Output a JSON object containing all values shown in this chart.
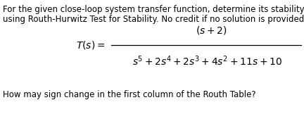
{
  "line1": "For the given close-loop system transfer function, determine its stability",
  "line2": "using Routh-Hurwitz Test for Stability. No credit if no solution is provided.",
  "label_T": "$T(s) =$",
  "numerator": "$(s + 2)$",
  "denominator": "$s^5 + 2s^4 + 2s^3 + 4s^2 + 11s + 10$",
  "question": "How may sign change in the first column of the Routh Table?",
  "bg_color": "#ffffff",
  "text_color": "#000000",
  "font_size_body": 8.5,
  "font_size_math": 10.0,
  "font_size_question": 8.5,
  "fig_width": 4.32,
  "fig_height": 1.69,
  "dpi": 100
}
